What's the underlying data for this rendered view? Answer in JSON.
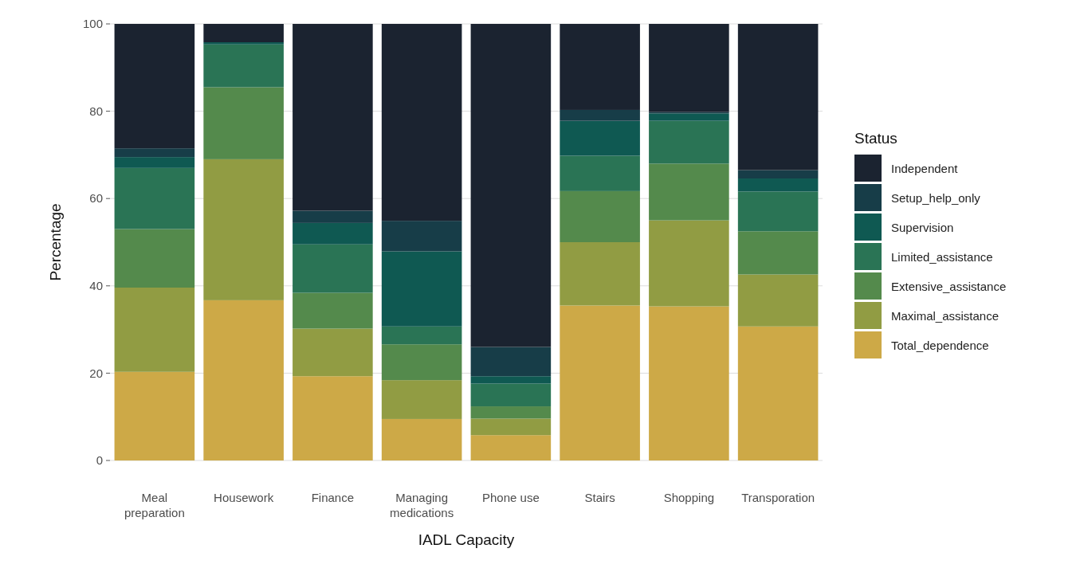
{
  "chart_data": {
    "type": "bar",
    "stacked": true,
    "xlabel": "IADL Capacity",
    "ylabel": "Percentage",
    "legend_title": "Status",
    "legend": "right",
    "grid": "y",
    "categories": [
      "Meal preparation",
      "Housework",
      "Finance",
      "Managing medications",
      "Phone use",
      "Stairs",
      "Shopping",
      "Transporation"
    ],
    "ylim": [
      0,
      100
    ],
    "yticks": [
      0,
      20,
      40,
      60,
      80,
      100
    ],
    "series": [
      {
        "name": "Total_dependence",
        "color": "#cda947",
        "values": [
          20.3,
          36.7,
          19.3,
          9.5,
          5.8,
          35.5,
          35.3,
          30.7
        ]
      },
      {
        "name": "Maximal_assistance",
        "color": "#919c43",
        "values": [
          19.3,
          32.3,
          10.9,
          8.9,
          3.8,
          14.5,
          19.7,
          11.9
        ]
      },
      {
        "name": "Extensive_assistance",
        "color": "#548a4c",
        "values": [
          13.4,
          16.5,
          8.2,
          8.2,
          2.8,
          11.7,
          13,
          9.9
        ]
      },
      {
        "name": "Limited_assistance",
        "color": "#2a7455",
        "values": [
          14,
          9.8,
          11.1,
          4.1,
          5.2,
          8.1,
          9.8,
          9.1
        ]
      },
      {
        "name": "Supervision",
        "color": "#0f5952",
        "values": [
          2.5,
          0.5,
          4.9,
          17.2,
          1.7,
          8,
          1.7,
          3
        ]
      },
      {
        "name": "Setup_help_only",
        "color": "#173d48",
        "values": [
          2,
          0,
          2.8,
          7,
          6.7,
          2.5,
          0.3,
          1.9
        ]
      },
      {
        "name": "Independent",
        "color": "#1b2330",
        "values": [
          28.5,
          4.2,
          42.8,
          45.1,
          74,
          19.7,
          20.2,
          33.5
        ]
      }
    ]
  }
}
